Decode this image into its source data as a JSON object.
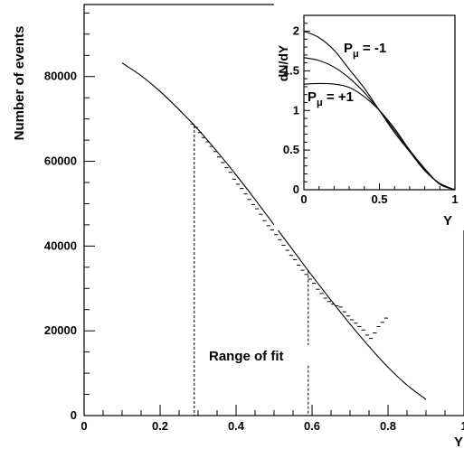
{
  "chart_data": [
    {
      "type": "line",
      "ylabel": "Number of events",
      "xlabel": "Y",
      "xlim": [
        0,
        1.0
      ],
      "ylim": [
        0,
        97000
      ],
      "xticks": [
        0,
        0.2,
        0.4,
        0.6,
        0.8,
        1
      ],
      "xtick_labels": [
        "0",
        "0.2",
        "0.4",
        "0.6",
        "0.8",
        "1"
      ],
      "yticks": [
        0,
        20000,
        40000,
        60000,
        80000
      ],
      "ytick_labels": [
        "0",
        "20000",
        "40000",
        "60000",
        "80000"
      ],
      "annotation": "Range of fit",
      "fit_range": [
        0.29,
        0.59
      ],
      "series": [
        {
          "style": "solid-curve",
          "x": [
            0.1,
            0.15,
            0.2,
            0.25,
            0.3,
            0.35,
            0.4,
            0.45,
            0.5,
            0.55,
            0.6,
            0.65,
            0.7,
            0.75,
            0.8,
            0.85,
            0.9
          ],
          "values": [
            83200,
            80200,
            76500,
            72200,
            67500,
            62300,
            56800,
            51000,
            45000,
            39000,
            33000,
            27200,
            21600,
            16300,
            11400,
            7200,
            3800
          ]
        },
        {
          "style": "histogram-steps",
          "x": [
            0.28,
            0.29,
            0.3,
            0.31,
            0.32,
            0.33,
            0.34,
            0.35,
            0.36,
            0.37,
            0.38,
            0.39,
            0.4,
            0.41,
            0.42,
            0.43,
            0.44,
            0.45,
            0.46,
            0.47,
            0.48,
            0.49,
            0.5,
            0.51,
            0.52,
            0.53,
            0.54,
            0.55,
            0.56,
            0.57,
            0.58,
            0.59,
            0.6,
            0.61,
            0.62,
            0.63,
            0.64,
            0.65,
            0.66,
            0.67,
            0.68,
            0.69,
            0.7,
            0.71,
            0.72,
            0.73,
            0.74,
            0.75,
            0.76,
            0.77,
            0.78,
            0.79
          ],
          "values": [
            68800,
            68000,
            66800,
            65600,
            64600,
            63500,
            62300,
            61000,
            59700,
            58500,
            57400,
            55800,
            54600,
            53600,
            52300,
            51000,
            49800,
            48800,
            47500,
            46000,
            44800,
            43800,
            42700,
            41500,
            40200,
            39000,
            37800,
            36800,
            35500,
            34300,
            33300,
            32200,
            31200,
            29800,
            28800,
            27700,
            26900,
            26300,
            25900,
            25600,
            24500,
            23500,
            22600,
            21800,
            21000,
            20200,
            19000,
            18200,
            19500,
            21000,
            22000,
            23000
          ]
        }
      ]
    },
    {
      "type": "line",
      "ylabel": "dN/dY",
      "xlabel": "Y",
      "xlim": [
        0,
        1
      ],
      "ylim": [
        0,
        2.2
      ],
      "xticks": [
        0,
        0.5,
        1
      ],
      "xtick_labels": [
        "0",
        "0.5",
        "1"
      ],
      "yticks": [
        0,
        0.5,
        1,
        1.5,
        2
      ],
      "ytick_labels": [
        "0",
        "0.5",
        "1",
        "1.5",
        "2"
      ],
      "labels": [
        "P",
        "μ",
        " = -1",
        "P",
        "μ",
        " = +1"
      ],
      "series": [
        {
          "polarization": -1,
          "x": [
            0,
            0.1,
            0.2,
            0.3,
            0.4,
            0.5,
            0.6,
            0.7,
            0.8,
            0.9,
            1.0
          ],
          "values": [
            2.0,
            1.92,
            1.76,
            1.52,
            1.28,
            1.0,
            0.72,
            0.48,
            0.24,
            0.08,
            0
          ]
        },
        {
          "polarization": 0,
          "x": [
            0,
            0.1,
            0.2,
            0.3,
            0.4,
            0.5,
            0.6,
            0.7,
            0.8,
            0.9,
            1.0
          ],
          "values": [
            1.667,
            1.63,
            1.547,
            1.41,
            1.227,
            1.0,
            0.747,
            0.49,
            0.253,
            0.07,
            0
          ]
        },
        {
          "polarization": 1,
          "x": [
            0,
            0.1,
            0.2,
            0.3,
            0.4,
            0.5,
            0.6,
            0.7,
            0.8,
            0.9,
            1.0
          ],
          "values": [
            1.333,
            1.34,
            1.333,
            1.29,
            1.173,
            1.0,
            0.773,
            0.5,
            0.267,
            0.067,
            0
          ]
        }
      ]
    }
  ]
}
